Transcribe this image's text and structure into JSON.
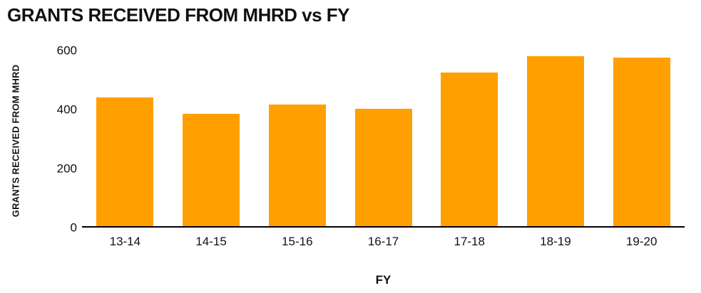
{
  "chart_data": {
    "type": "bar",
    "title": "GRANTS RECEIVED FROM MHRD vs FY",
    "xlabel": "FY",
    "ylabel": "GRANTS RECEIVED FROM MHRD",
    "categories": [
      "13-14",
      "14-15",
      "15-16",
      "16-17",
      "17-18",
      "18-19",
      "19-20"
    ],
    "values": [
      440,
      385,
      415,
      402,
      525,
      580,
      575
    ],
    "ylim": [
      0,
      600
    ],
    "yticks": [
      0,
      200,
      400,
      600
    ],
    "grid": false,
    "legend_position": "none",
    "bar_color": "#FFA000",
    "axis_color": "#000000",
    "background_color": "#FFFFFF"
  }
}
